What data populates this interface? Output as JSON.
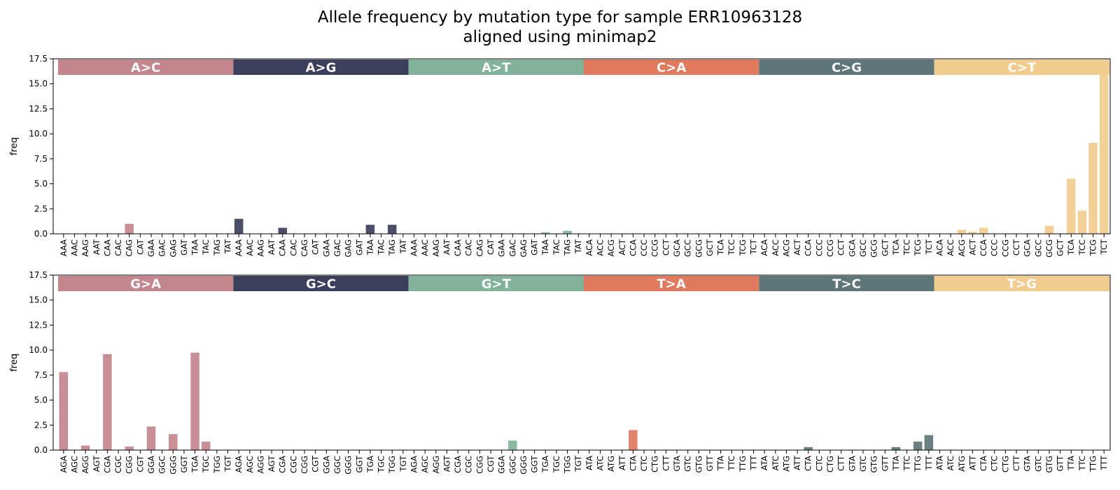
{
  "chart_data": {
    "type": "bar",
    "title": "Allele frequency by mutation type for sample ERR10963128",
    "subtitle": "aligned using minimap2",
    "ylabel": "freq",
    "ylim": [
      0,
      17.5
    ],
    "yticks": [
      "0.0",
      "2.5",
      "5.0",
      "7.5",
      "10.0",
      "12.5",
      "15.0",
      "17.5"
    ],
    "grid": false,
    "colors": [
      "#c4868d",
      "#3c3f5c",
      "#82b29a",
      "#e07a5f",
      "#5e7679",
      "#f2cc8f"
    ],
    "panels": [
      {
        "groups": [
          {
            "mutation": "A>C",
            "color": "#c4868d",
            "categories": [
              "AAA",
              "AAC",
              "AAG",
              "AAT",
              "CAA",
              "CAC",
              "CAG",
              "CAT",
              "GAA",
              "GAC",
              "GAG",
              "GAT",
              "TAA",
              "TAC",
              "TAG",
              "TAT"
            ],
            "values": [
              0,
              0,
              0,
              0,
              0,
              0,
              1.0,
              0,
              0,
              0,
              0,
              0,
              0,
              0,
              0,
              0
            ]
          },
          {
            "mutation": "A>G",
            "color": "#3c3f5c",
            "categories": [
              "AAA",
              "AAC",
              "AAG",
              "AAT",
              "CAA",
              "CAC",
              "CAG",
              "CAT",
              "GAA",
              "GAC",
              "GAG",
              "GAT",
              "TAA",
              "TAC",
              "TAG",
              "TAT"
            ],
            "values": [
              1.5,
              0,
              0,
              0,
              0.6,
              0,
              0,
              0,
              0,
              0,
              0,
              0,
              0.9,
              0,
              0.9,
              0
            ]
          },
          {
            "mutation": "A>T",
            "color": "#82b29a",
            "categories": [
              "AAA",
              "AAC",
              "AAG",
              "AAT",
              "CAA",
              "CAC",
              "CAG",
              "CAT",
              "GAA",
              "GAC",
              "GAG",
              "GAT",
              "TAA",
              "TAC",
              "TAG",
              "TAT"
            ],
            "values": [
              0,
              0,
              0,
              0,
              0,
              0,
              0,
              0,
              0,
              0,
              0,
              0,
              0.15,
              0,
              0.3,
              0
            ]
          },
          {
            "mutation": "C>A",
            "color": "#e07a5f",
            "categories": [
              "ACA",
              "ACC",
              "ACG",
              "ACT",
              "CCA",
              "CCC",
              "CCG",
              "CCT",
              "GCA",
              "GCC",
              "GCG",
              "GCT",
              "TCA",
              "TCC",
              "TCG",
              "TCT"
            ],
            "values": [
              0,
              0,
              0,
              0,
              0,
              0,
              0,
              0,
              0,
              0,
              0,
              0,
              0,
              0,
              0,
              0
            ]
          },
          {
            "mutation": "C>G",
            "color": "#5e7679",
            "categories": [
              "ACA",
              "ACC",
              "ACG",
              "ACT",
              "CCA",
              "CCC",
              "CCG",
              "CCT",
              "GCA",
              "GCC",
              "GCG",
              "GCT",
              "TCA",
              "TCC",
              "TCG",
              "TCT"
            ],
            "values": [
              0,
              0,
              0,
              0,
              0,
              0,
              0,
              0,
              0,
              0,
              0,
              0,
              0,
              0,
              0,
              0
            ]
          },
          {
            "mutation": "C>T",
            "color": "#f2cc8f",
            "categories": [
              "ACA",
              "ACC",
              "ACG",
              "ACT",
              "CCA",
              "CCC",
              "CCG",
              "CCT",
              "GCA",
              "GCC",
              "GCG",
              "GCT",
              "TCA",
              "TCC",
              "TCG",
              "TCT"
            ],
            "values": [
              0,
              0,
              0.4,
              0.2,
              0.6,
              0,
              0,
              0,
              0,
              0,
              0.8,
              0,
              5.5,
              2.3,
              9.1,
              16.0
            ]
          }
        ]
      },
      {
        "groups": [
          {
            "mutation": "G>A",
            "color": "#c4868d",
            "categories": [
              "AGA",
              "AGC",
              "AGG",
              "AGT",
              "CGA",
              "CGC",
              "CGG",
              "CGT",
              "GGA",
              "GGC",
              "GGG",
              "GGT",
              "TGA",
              "TGC",
              "TGG",
              "TGT"
            ],
            "values": [
              7.8,
              0,
              0.45,
              0,
              9.6,
              0,
              0.35,
              0,
              2.35,
              0,
              1.6,
              0,
              9.75,
              0.85,
              0,
              0
            ]
          },
          {
            "mutation": "G>C",
            "color": "#3c3f5c",
            "categories": [
              "AGA",
              "AGC",
              "AGG",
              "AGT",
              "CGA",
              "CGC",
              "CGG",
              "CGT",
              "GGA",
              "GGC",
              "GGG",
              "GGT",
              "TGA",
              "TGC",
              "TGG",
              "TGT"
            ],
            "values": [
              0,
              0,
              0,
              0,
              0,
              0,
              0,
              0,
              0,
              0,
              0,
              0,
              0,
              0,
              0,
              0
            ]
          },
          {
            "mutation": "G>T",
            "color": "#82b29a",
            "categories": [
              "AGA",
              "AGC",
              "AGG",
              "AGT",
              "CGA",
              "CGC",
              "CGG",
              "CGT",
              "GGA",
              "GGC",
              "GGG",
              "GGT",
              "TGA",
              "TGC",
              "TGG",
              "TGT"
            ],
            "values": [
              0,
              0,
              0,
              0,
              0,
              0,
              0,
              0,
              0,
              0.95,
              0,
              0,
              0,
              0,
              0,
              0
            ]
          },
          {
            "mutation": "T>A",
            "color": "#e07a5f",
            "categories": [
              "ATA",
              "ATC",
              "ATG",
              "ATT",
              "CTA",
              "CTC",
              "CTG",
              "CTT",
              "GTA",
              "GTC",
              "GTG",
              "GTT",
              "TTA",
              "TTC",
              "TTG",
              "TTT"
            ],
            "values": [
              0,
              0,
              0,
              0,
              2.0,
              0,
              0,
              0,
              0,
              0,
              0,
              0,
              0,
              0,
              0,
              0
            ]
          },
          {
            "mutation": "T>C",
            "color": "#5e7679",
            "categories": [
              "ATA",
              "ATC",
              "ATG",
              "ATT",
              "CTA",
              "CTC",
              "CTG",
              "CTT",
              "GTA",
              "GTC",
              "GTG",
              "GTT",
              "TTA",
              "TTC",
              "TTG",
              "TTT"
            ],
            "values": [
              0,
              0,
              0,
              0,
              0.3,
              0,
              0,
              0,
              0,
              0,
              0,
              0,
              0.3,
              0,
              0.85,
              1.5
            ]
          },
          {
            "mutation": "T>G",
            "color": "#f2cc8f",
            "categories": [
              "ATA",
              "ATC",
              "ATG",
              "ATT",
              "CTA",
              "CTC",
              "CTG",
              "CTT",
              "GTA",
              "GTC",
              "GTG",
              "GTT",
              "TTA",
              "TTC",
              "TTG",
              "TTT"
            ],
            "values": [
              0,
              0,
              0,
              0,
              0,
              0,
              0,
              0,
              0,
              0,
              0,
              0,
              0,
              0,
              0,
              0
            ]
          }
        ]
      }
    ]
  }
}
